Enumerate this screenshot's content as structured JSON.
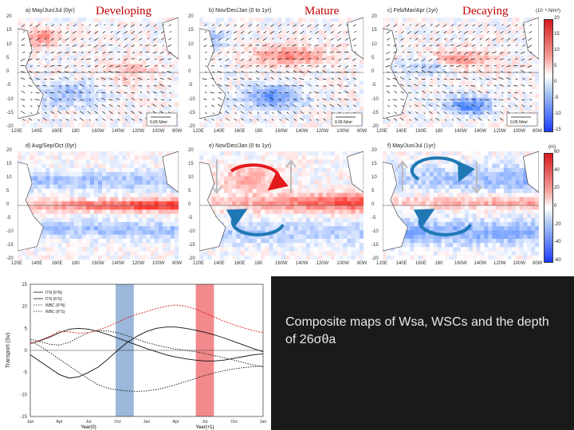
{
  "panels": [
    {
      "id": "a",
      "title": "a) May/Jun/Jul (0yr)",
      "label": "Developing"
    },
    {
      "id": "b",
      "title": "b) Nov/Dec/Jan (0 to 1yr)",
      "label": "Mature"
    },
    {
      "id": "c",
      "title": "c) Feb/Mar/Apr (1yr)",
      "label": "Decaying"
    },
    {
      "id": "d",
      "title": "d) Aug/Sep/Oct (0yr)",
      "label": ""
    },
    {
      "id": "e",
      "title": "e) Nov/Dec/Jan (0 to 1yr)",
      "label": ""
    },
    {
      "id": "f",
      "title": "f) May/Jun/Jul (1yr)",
      "label": ""
    }
  ],
  "map_axes": {
    "lat_ticks": [
      "20",
      "15",
      "10",
      "5",
      "0",
      "-5",
      "-10",
      "-15",
      "-20"
    ],
    "lon_ticks_top": [
      "120E",
      "140E",
      "160E",
      "180",
      "160W",
      "140W",
      "120W",
      "100W",
      "80W"
    ],
    "lon_ticks_bottom": [
      "120E",
      "140E",
      "160E",
      "180",
      "160W",
      "140W",
      "120W",
      "100W",
      "80W"
    ]
  },
  "vector_reference": {
    "label": "0.05 N/m²"
  },
  "colorbars": {
    "top": {
      "unit": "(10⁻⁸ N/m³)",
      "ticks": [
        "20",
        "15",
        "10",
        "5",
        "0",
        "-5",
        "-10",
        "-15"
      ]
    },
    "bottom": {
      "unit": "(m)",
      "ticks": [
        "60",
        "40",
        "20",
        "0",
        "-20",
        "-40",
        "-60"
      ]
    }
  },
  "colors": {
    "positive": "#d7191c",
    "negative": "#2166ac",
    "neutral": "#ffffff",
    "red_circle": "#e31a1c",
    "blue_circle": "#1f78b4",
    "shade_blue": "#9bb7d9",
    "shade_red": "#f2898c",
    "caption_bg": "#1a1a1a"
  },
  "caption": "Composite maps  of Wsa, WSCs and the depth of 26σθa",
  "chart_data": {
    "type": "line",
    "ylabel": "Transport (Sv)",
    "xlabel_segments": [
      "Year(0)",
      "Year(+1)"
    ],
    "x_ticks": [
      "Jan",
      "Apr",
      "Jul",
      "Oct",
      "Jan",
      "Apr",
      "Jul",
      "Oct",
      "Jan"
    ],
    "y_ticks": [
      "15",
      "10",
      "5",
      "0",
      "-5",
      "-10",
      "-15"
    ],
    "ylim": [
      -15,
      15
    ],
    "shaded_bands": [
      {
        "from": 6.6,
        "to": 8.0,
        "color": "blue"
      },
      {
        "from": 12.8,
        "to": 14.2,
        "color": "red"
      }
    ],
    "x": [
      0,
      1,
      2,
      3,
      4,
      5,
      6,
      7,
      8,
      9,
      10,
      11,
      12,
      13,
      14,
      15,
      16,
      17,
      18,
      19,
      20,
      21,
      22,
      23,
      24
    ],
    "series": [
      {
        "name": "ITN (6°N)",
        "style": "solid",
        "values": [
          1.5,
          2.2,
          3.0,
          4.0,
          4.8,
          5.0,
          4.8,
          4.3,
          3.6,
          2.8,
          2.0,
          1.2,
          0.4,
          -0.3,
          -1.0,
          -1.5,
          -1.9,
          -2.2,
          -2.4,
          -2.4,
          -2.2,
          -1.8,
          -1.4,
          -1.0,
          -0.8
        ]
      },
      {
        "name": "ITN (6°S)",
        "style": "solid",
        "values": [
          -1.0,
          -2.5,
          -4.0,
          -5.5,
          -6.3,
          -6.0,
          -5.0,
          -3.8,
          -2.0,
          0.0,
          1.8,
          3.2,
          4.3,
          5.0,
          5.3,
          5.3,
          5.0,
          4.6,
          4.1,
          3.5,
          2.8,
          2.0,
          1.2,
          0.4,
          -0.3
        ]
      },
      {
        "name": "WBC (6°N)",
        "style": "dotted",
        "values": [
          2.5,
          2.0,
          1.4,
          1.2,
          1.8,
          3.0,
          4.0,
          4.5,
          4.4,
          4.0,
          3.3,
          2.5,
          1.8,
          1.2,
          0.7,
          0.3,
          0.0,
          -0.3,
          -0.7,
          -1.2,
          -1.7,
          -2.2,
          -2.8,
          -3.3,
          -3.7
        ]
      },
      {
        "name": "WBC (6°S)",
        "style": "dotted",
        "values": [
          2.0,
          1.0,
          -0.5,
          -2.0,
          -3.5,
          -5.0,
          -6.5,
          -7.8,
          -8.6,
          -9.0,
          -9.2,
          -9.3,
          -9.2,
          -8.9,
          -8.4,
          -7.8,
          -7.1,
          -6.4,
          -5.7,
          -5.1,
          -4.6,
          -4.2,
          -3.9,
          -3.7,
          -3.6
        ]
      },
      {
        "name": "",
        "style": "dashed-red",
        "values": [
          1.5,
          2.3,
          3.2,
          4.3,
          4.2,
          3.9,
          4.0,
          4.6,
          5.4,
          6.4,
          7.4,
          8.2,
          8.8,
          9.5,
          10.0,
          10.3,
          10.0,
          9.4,
          8.5,
          7.5,
          6.6,
          5.8,
          5.1,
          4.5,
          4.0
        ]
      }
    ]
  }
}
